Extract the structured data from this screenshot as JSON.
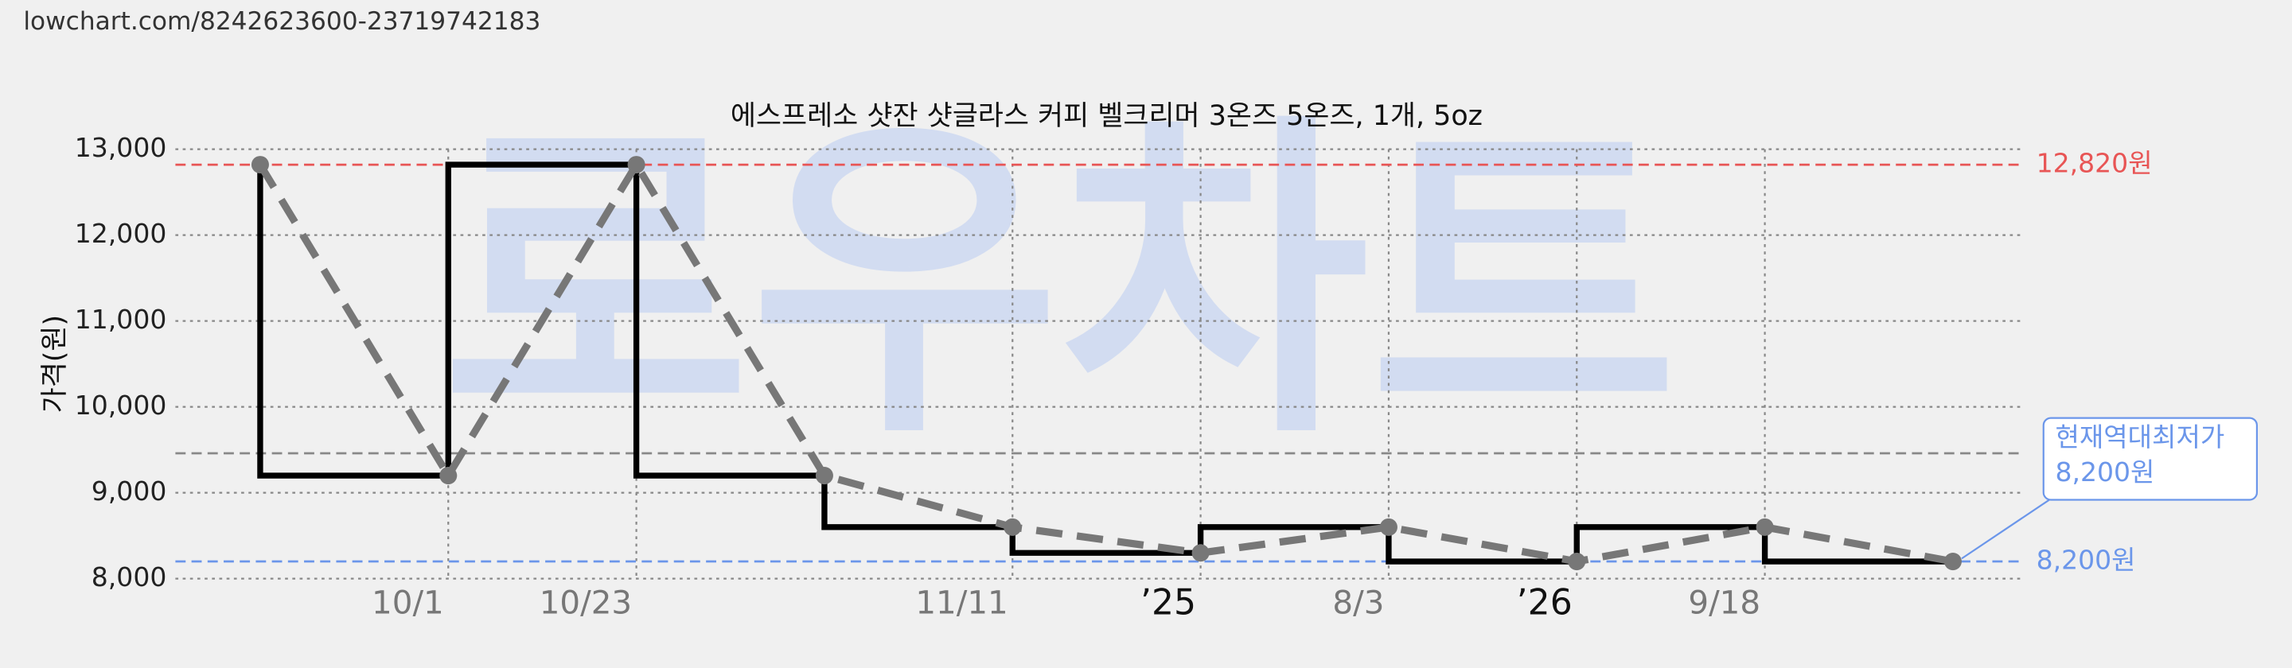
{
  "source_url": "lowchart.com/8242623600-23719742183",
  "watermark": "로우차트",
  "chart_data": {
    "type": "line",
    "title": "에스프레소 샷잔 샷글라스 커피 벨크리머 3온즈 5온즈, 1개, 5oz",
    "y_label": "가격(원)",
    "categories": [
      null,
      "10/1",
      "10/23",
      null,
      "11/11",
      "’25",
      "8/3",
      "’26",
      "9/18",
      null
    ],
    "values": [
      12820,
      9200,
      12820,
      9200,
      8600,
      8300,
      8600,
      8200,
      8600,
      8200
    ],
    "color": "#000000",
    "trend_color": "#777777",
    "ylim": [
      8000,
      13000
    ],
    "yticks": [
      {
        "value": 8000,
        "label": "8,000"
      },
      {
        "value": 9000,
        "label": "9,000"
      },
      {
        "value": 10000,
        "label": "10,000"
      },
      {
        "value": 11000,
        "label": "11,000"
      },
      {
        "value": 12000,
        "label": "12,000"
      },
      {
        "value": 13000,
        "label": "13,000"
      }
    ],
    "grid": true,
    "reference_lines": [
      {
        "value": 12820,
        "label": "12,820원",
        "color": "#e85555"
      },
      {
        "value": 8200,
        "label": "8,200원",
        "color": "#6b96ea"
      },
      {
        "value": 9460,
        "color": "#888888"
      }
    ],
    "annotation": {
      "lines": [
        "현재역대최저가",
        "8,200원"
      ],
      "color": "#6b96ea"
    }
  }
}
